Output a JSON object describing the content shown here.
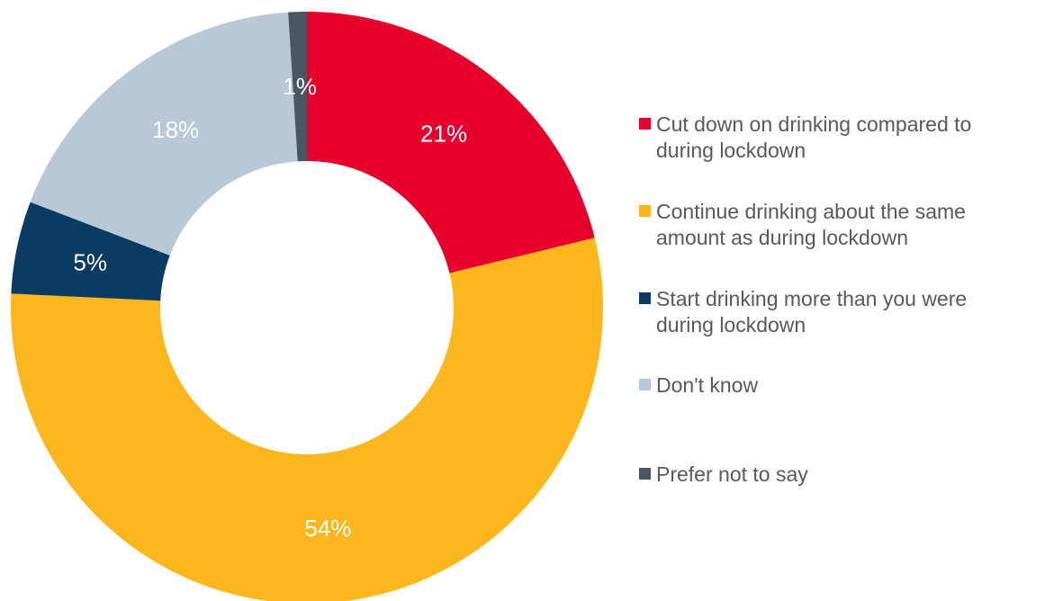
{
  "chart_data": {
    "type": "pie",
    "donut": true,
    "categories": [
      "Cut down on drinking compared to during lockdown",
      "Continue drinking about the same amount as during lockdown",
      "Start drinking more than you were during lockdown",
      "Don't know",
      "Prefer not to say"
    ],
    "values": [
      21,
      54,
      5,
      18,
      1
    ],
    "value_labels": [
      "21%",
      "54%",
      "5%",
      "18%",
      "1%"
    ],
    "unit": "%",
    "colors": [
      "#E8002D",
      "#FDB71E",
      "#0B3A63",
      "#B9C8D7",
      "#4A5663"
    ],
    "label_color": "#FFFFFF",
    "legend_position": "right",
    "legend": [
      {
        "line1": "Cut down on drinking compared to",
        "line2": "during lockdown"
      },
      {
        "line1": "Continue drinking about the same",
        "line2": "amount as during lockdown"
      },
      {
        "line1": "Start drinking more than you were",
        "line2": "during lockdown"
      },
      {
        "line1": "Don't know",
        "line2": ""
      },
      {
        "line1": "Prefer not to say",
        "line2": ""
      }
    ]
  }
}
